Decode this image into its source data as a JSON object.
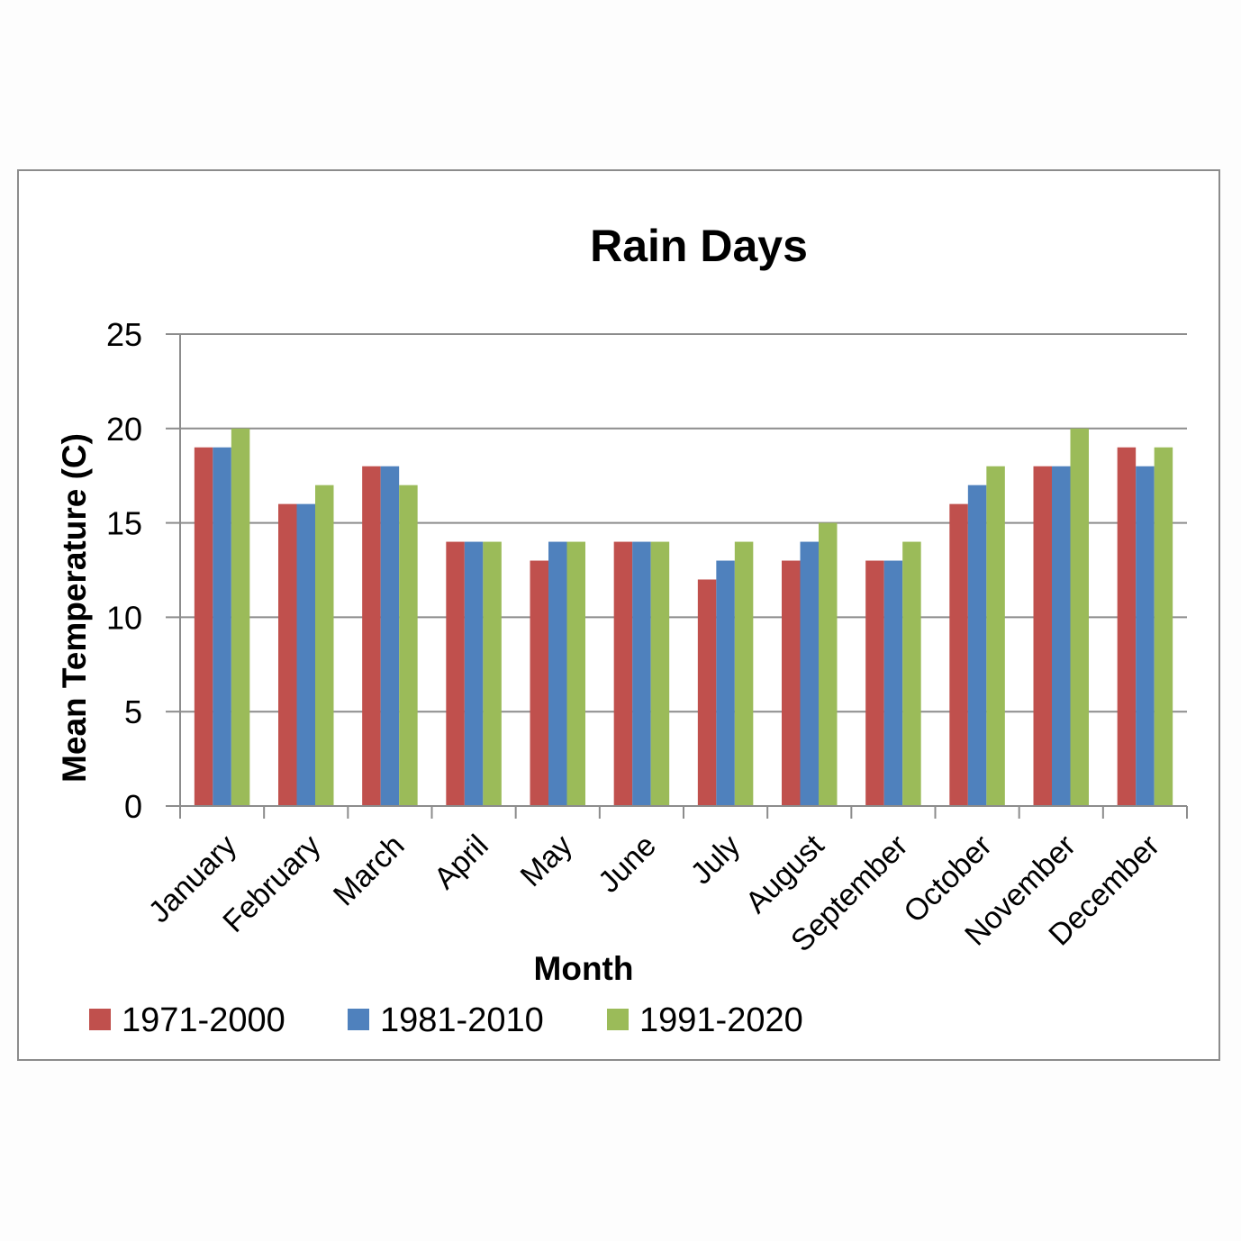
{
  "chart_data": {
    "type": "bar",
    "title": "Rain Days",
    "xlabel": "Month",
    "ylabel": "Mean Temperature (C)",
    "ylim": [
      0,
      25
    ],
    "yticks": [
      "0",
      "5",
      "10",
      "15",
      "20",
      "25"
    ],
    "grid": true,
    "legend_position": "bottom",
    "categories": [
      "January",
      "February",
      "March",
      "April",
      "May",
      "June",
      "July",
      "August",
      "September",
      "October",
      "November",
      "December"
    ],
    "series": [
      {
        "name": "1971-2000",
        "color": "#c0504d",
        "values": [
          19,
          16,
          18,
          14,
          13,
          14,
          12,
          13,
          13,
          16,
          18,
          19
        ]
      },
      {
        "name": "1981-2010",
        "color": "#4f81bd",
        "values": [
          19,
          16,
          18,
          14,
          14,
          14,
          13,
          14,
          13,
          17,
          18,
          18
        ]
      },
      {
        "name": "1991-2020",
        "color": "#9bbb59",
        "values": [
          20,
          17,
          17,
          14,
          14,
          14,
          14,
          15,
          14,
          18,
          20,
          19
        ]
      }
    ]
  }
}
